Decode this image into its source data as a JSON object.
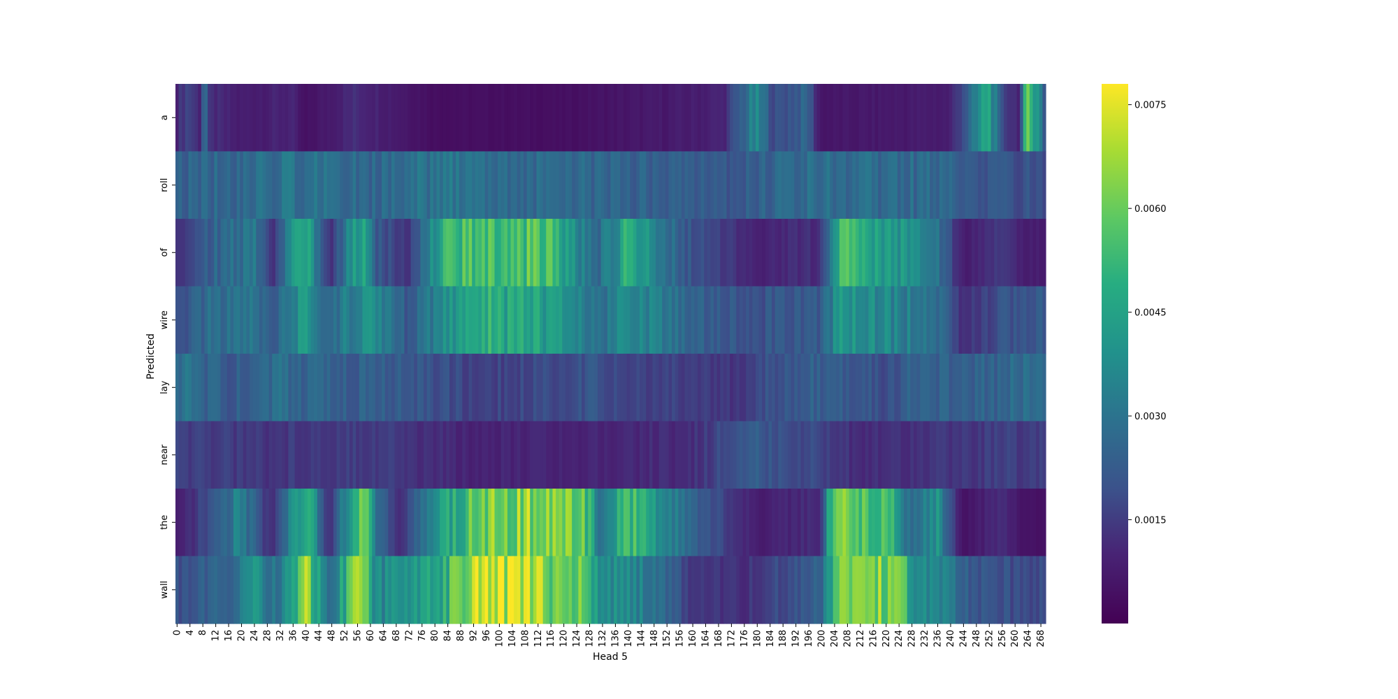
{
  "chart_data": {
    "type": "heatmap",
    "xlabel": "Head 5",
    "ylabel": "Predicted",
    "y_categories": [
      "a",
      "roll",
      "of",
      "wire",
      "lay",
      "near",
      "the",
      "wall"
    ],
    "x_range": [
      0,
      270
    ],
    "x_tick_step": 4,
    "x_ticks": [
      0,
      4,
      8,
      12,
      16,
      20,
      24,
      28,
      32,
      36,
      40,
      44,
      48,
      52,
      56,
      60,
      64,
      68,
      72,
      76,
      80,
      84,
      88,
      92,
      96,
      100,
      104,
      108,
      112,
      116,
      120,
      124,
      128,
      132,
      136,
      140,
      144,
      148,
      152,
      156,
      160,
      164,
      168,
      172,
      176,
      180,
      184,
      188,
      192,
      196,
      200,
      204,
      208,
      212,
      216,
      220,
      224,
      228,
      232,
      236,
      240,
      244,
      248,
      252,
      256,
      260,
      264,
      268
    ],
    "colormap": "viridis",
    "colorbar": {
      "vmin": 0.0,
      "vmax": 0.0078,
      "ticks": [
        0.0015,
        0.003,
        0.0045,
        0.006,
        0.0075
      ],
      "tick_labels": [
        "0.0015",
        "0.0030",
        "0.0045",
        "0.0060",
        "0.0075"
      ]
    },
    "row_profiles": {
      "a": [
        [
          0,
          0.001
        ],
        [
          4,
          0.0018
        ],
        [
          8,
          0.0009
        ],
        [
          9,
          0.004
        ],
        [
          10,
          0.0012
        ],
        [
          20,
          0.0008
        ],
        [
          36,
          0.001
        ],
        [
          40,
          0.0004
        ],
        [
          56,
          0.0012
        ],
        [
          80,
          0.0004
        ],
        [
          120,
          0.0004
        ],
        [
          160,
          0.0008
        ],
        [
          170,
          0.001
        ],
        [
          180,
          0.0035
        ],
        [
          186,
          0.0018
        ],
        [
          196,
          0.0025
        ],
        [
          200,
          0.0006
        ],
        [
          240,
          0.0008
        ],
        [
          248,
          0.003
        ],
        [
          252,
          0.005
        ],
        [
          256,
          0.0018
        ],
        [
          262,
          0.001
        ],
        [
          264,
          0.0055
        ],
        [
          268,
          0.0045
        ],
        [
          269,
          0.002
        ]
      ],
      "roll": [
        [
          0,
          0.0024
        ],
        [
          40,
          0.003
        ],
        [
          60,
          0.0026
        ],
        [
          84,
          0.003
        ],
        [
          132,
          0.0026
        ],
        [
          170,
          0.0022
        ],
        [
          200,
          0.0028
        ],
        [
          240,
          0.0026
        ],
        [
          248,
          0.002
        ],
        [
          269,
          0.002
        ]
      ],
      "of": [
        [
          0,
          0.0012
        ],
        [
          12,
          0.0025
        ],
        [
          24,
          0.0032
        ],
        [
          30,
          0.0012
        ],
        [
          40,
          0.0052
        ],
        [
          48,
          0.0012
        ],
        [
          58,
          0.005
        ],
        [
          62,
          0.0022
        ],
        [
          72,
          0.0014
        ],
        [
          84,
          0.0048
        ],
        [
          96,
          0.0058
        ],
        [
          116,
          0.0055
        ],
        [
          130,
          0.0025
        ],
        [
          140,
          0.0048
        ],
        [
          160,
          0.002
        ],
        [
          180,
          0.001
        ],
        [
          200,
          0.0012
        ],
        [
          206,
          0.0055
        ],
        [
          220,
          0.0045
        ],
        [
          236,
          0.003
        ],
        [
          244,
          0.0008
        ],
        [
          256,
          0.0015
        ],
        [
          264,
          0.0008
        ],
        [
          269,
          0.0008
        ]
      ],
      "wire": [
        [
          0,
          0.002
        ],
        [
          12,
          0.0028
        ],
        [
          24,
          0.0032
        ],
        [
          30,
          0.002
        ],
        [
          40,
          0.0045
        ],
        [
          48,
          0.0025
        ],
        [
          58,
          0.004
        ],
        [
          72,
          0.0022
        ],
        [
          84,
          0.004
        ],
        [
          96,
          0.0048
        ],
        [
          116,
          0.0042
        ],
        [
          130,
          0.0028
        ],
        [
          140,
          0.0038
        ],
        [
          160,
          0.0024
        ],
        [
          180,
          0.002
        ],
        [
          200,
          0.0022
        ],
        [
          206,
          0.004
        ],
        [
          220,
          0.0036
        ],
        [
          236,
          0.003
        ],
        [
          244,
          0.0012
        ],
        [
          256,
          0.002
        ],
        [
          269,
          0.0022
        ]
      ],
      "lay": [
        [
          0,
          0.003
        ],
        [
          16,
          0.0022
        ],
        [
          32,
          0.0028
        ],
        [
          48,
          0.0024
        ],
        [
          72,
          0.0022
        ],
        [
          96,
          0.0016
        ],
        [
          130,
          0.002
        ],
        [
          150,
          0.0016
        ],
        [
          176,
          0.0014
        ],
        [
          180,
          0.0018
        ],
        [
          200,
          0.0024
        ],
        [
          224,
          0.0018
        ],
        [
          228,
          0.0026
        ],
        [
          248,
          0.0024
        ],
        [
          269,
          0.0028
        ]
      ],
      "near": [
        [
          0,
          0.0016
        ],
        [
          30,
          0.0014
        ],
        [
          60,
          0.0016
        ],
        [
          90,
          0.001
        ],
        [
          120,
          0.001
        ],
        [
          160,
          0.0012
        ],
        [
          170,
          0.0018
        ],
        [
          180,
          0.0022
        ],
        [
          200,
          0.0018
        ],
        [
          210,
          0.0012
        ],
        [
          240,
          0.0014
        ],
        [
          269,
          0.0016
        ]
      ],
      "the": [
        [
          0,
          0.0008
        ],
        [
          12,
          0.002
        ],
        [
          20,
          0.0035
        ],
        [
          30,
          0.001
        ],
        [
          40,
          0.0055
        ],
        [
          48,
          0.001
        ],
        [
          58,
          0.0068
        ],
        [
          62,
          0.003
        ],
        [
          70,
          0.0012
        ],
        [
          84,
          0.0045
        ],
        [
          96,
          0.0062
        ],
        [
          116,
          0.0065
        ],
        [
          128,
          0.0055
        ],
        [
          132,
          0.0025
        ],
        [
          140,
          0.0055
        ],
        [
          160,
          0.0025
        ],
        [
          180,
          0.0008
        ],
        [
          200,
          0.0012
        ],
        [
          204,
          0.006
        ],
        [
          220,
          0.0058
        ],
        [
          228,
          0.0025
        ],
        [
          236,
          0.004
        ],
        [
          244,
          0.0005
        ],
        [
          256,
          0.0012
        ],
        [
          264,
          0.0005
        ],
        [
          269,
          0.0005
        ]
      ],
      "wall": [
        [
          0,
          0.002
        ],
        [
          16,
          0.0025
        ],
        [
          24,
          0.004
        ],
        [
          32,
          0.0028
        ],
        [
          40,
          0.0065
        ],
        [
          48,
          0.003
        ],
        [
          58,
          0.0068
        ],
        [
          62,
          0.0035
        ],
        [
          84,
          0.005
        ],
        [
          92,
          0.0068
        ],
        [
          96,
          0.0076
        ],
        [
          104,
          0.007
        ],
        [
          116,
          0.0062
        ],
        [
          128,
          0.0058
        ],
        [
          132,
          0.0035
        ],
        [
          140,
          0.004
        ],
        [
          160,
          0.0015
        ],
        [
          176,
          0.0012
        ],
        [
          200,
          0.0025
        ],
        [
          206,
          0.0058
        ],
        [
          220,
          0.0062
        ],
        [
          224,
          0.007
        ],
        [
          228,
          0.004
        ],
        [
          240,
          0.0035
        ],
        [
          248,
          0.002
        ],
        [
          269,
          0.0018
        ]
      ]
    }
  }
}
